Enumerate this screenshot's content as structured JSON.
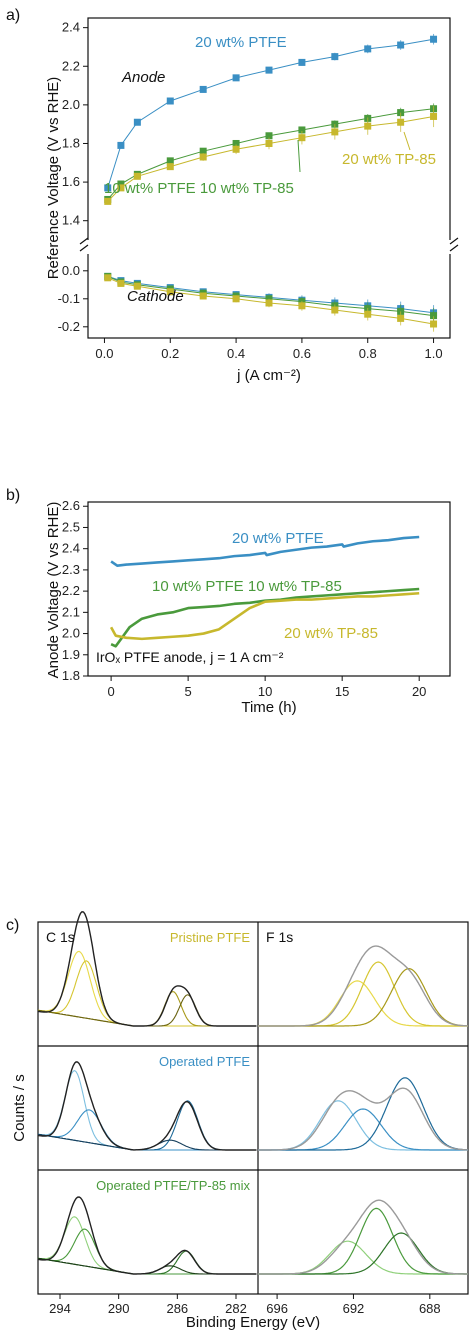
{
  "panel_labels": [
    "a)",
    "b)",
    "c)"
  ],
  "colors": {
    "blue": "#3a8fc4",
    "green": "#4a9a3c",
    "yellow": "#c7b82d",
    "axis": "#111111"
  },
  "chart_data": [
    {
      "type": "line",
      "panel": "a)",
      "xlabel": "j (A cm⁻²)",
      "ylabel": "Reference Voltage (V vs RHE)",
      "xlim": [
        -0.05,
        1.05
      ],
      "xticks": [
        "0.0",
        "0.2",
        "0.4",
        "0.6",
        "0.8",
        "1.0"
      ],
      "ylim_upper": [
        1.3,
        2.45
      ],
      "yticks_upper": [
        "1.4",
        "1.6",
        "1.8",
        "2.0",
        "2.2",
        "2.4"
      ],
      "ylim_lower": [
        -0.24,
        0.06
      ],
      "yticks_lower": [
        "-0.2",
        "-0.1",
        "0.0"
      ],
      "region_labels": [
        "Anode",
        "Cathode"
      ],
      "annotations": [
        "20 wt% PTFE",
        "20 wt% TP-85",
        "10 wt% PTFE 10 wt% TP-85"
      ],
      "series": [
        {
          "name": "20 wt% PTFE",
          "color": "#3a8fc4",
          "x": [
            0.01,
            0.05,
            0.1,
            0.2,
            0.3,
            0.4,
            0.5,
            0.6,
            0.7,
            0.8,
            0.9,
            1.0
          ],
          "anode": [
            1.57,
            1.79,
            1.91,
            2.02,
            2.08,
            2.14,
            2.18,
            2.22,
            2.25,
            2.29,
            2.31,
            2.34
          ],
          "cathode": [
            -0.02,
            -0.035,
            -0.045,
            -0.06,
            -0.075,
            -0.085,
            -0.095,
            -0.105,
            -0.115,
            -0.125,
            -0.135,
            -0.15
          ]
        },
        {
          "name": "10 wt% PTFE 10 wt% TP-85",
          "color": "#4a9a3c",
          "x": [
            0.01,
            0.05,
            0.1,
            0.2,
            0.3,
            0.4,
            0.5,
            0.6,
            0.7,
            0.8,
            0.9,
            1.0
          ],
          "anode": [
            1.51,
            1.59,
            1.64,
            1.71,
            1.76,
            1.8,
            1.84,
            1.87,
            1.9,
            1.93,
            1.96,
            1.98
          ],
          "cathode": [
            -0.02,
            -0.04,
            -0.05,
            -0.065,
            -0.08,
            -0.09,
            -0.1,
            -0.11,
            -0.125,
            -0.135,
            -0.145,
            -0.16
          ]
        },
        {
          "name": "20 wt% TP-85",
          "color": "#c7b82d",
          "x": [
            0.01,
            0.05,
            0.1,
            0.2,
            0.3,
            0.4,
            0.5,
            0.6,
            0.7,
            0.8,
            0.9,
            1.0
          ],
          "anode": [
            1.5,
            1.57,
            1.63,
            1.68,
            1.73,
            1.77,
            1.8,
            1.83,
            1.86,
            1.89,
            1.91,
            1.94
          ],
          "cathode": [
            -0.025,
            -0.045,
            -0.055,
            -0.075,
            -0.09,
            -0.1,
            -0.115,
            -0.125,
            -0.14,
            -0.155,
            -0.17,
            -0.19
          ]
        }
      ]
    },
    {
      "type": "line",
      "panel": "b)",
      "xlabel": "Time (h)",
      "ylabel": "Anode Voltage (V vs RHE)",
      "xlim": [
        -1.5,
        22
      ],
      "xticks": [
        "0",
        "5",
        "10",
        "15",
        "20"
      ],
      "ylim": [
        1.8,
        2.62
      ],
      "yticks": [
        "1.8",
        "1.9",
        "2.0",
        "2.1",
        "2.2",
        "2.3",
        "2.4",
        "2.5",
        "2.6"
      ],
      "annotation": "IrOₓ PTFE anode, j = 1 A cm⁻²",
      "series": [
        {
          "name": "20 wt% PTFE",
          "color": "#3a8fc4",
          "x": [
            0,
            0.4,
            1,
            2,
            3,
            4,
            5,
            6,
            7,
            8,
            9,
            10,
            10.1,
            11,
            12,
            13,
            14,
            15,
            15.1,
            16,
            17,
            18,
            19,
            20
          ],
          "y": [
            2.34,
            2.32,
            2.325,
            2.33,
            2.335,
            2.34,
            2.345,
            2.35,
            2.355,
            2.365,
            2.37,
            2.38,
            2.37,
            2.385,
            2.395,
            2.405,
            2.41,
            2.42,
            2.41,
            2.425,
            2.435,
            2.44,
            2.45,
            2.455
          ]
        },
        {
          "name": "10 wt% PTFE 10 wt% TP-85",
          "color": "#4a9a3c",
          "x": [
            0,
            0.3,
            0.7,
            1.2,
            2,
            3,
            4,
            5,
            6,
            7,
            8,
            9,
            10,
            11,
            12,
            13,
            14,
            15,
            16,
            17,
            18,
            19,
            20
          ],
          "y": [
            1.95,
            1.94,
            1.98,
            2.03,
            2.07,
            2.09,
            2.1,
            2.12,
            2.125,
            2.13,
            2.14,
            2.145,
            2.155,
            2.16,
            2.17,
            2.175,
            2.18,
            2.185,
            2.19,
            2.195,
            2.2,
            2.205,
            2.21
          ]
        },
        {
          "name": "20 wt% TP-85",
          "color": "#c7b82d",
          "x": [
            0,
            0.3,
            1,
            2,
            3,
            4,
            5,
            6,
            7,
            8,
            9,
            10,
            11,
            12,
            13,
            14,
            15,
            16,
            17,
            18,
            19,
            20
          ],
          "y": [
            2.03,
            1.99,
            1.98,
            1.975,
            1.98,
            1.985,
            1.99,
            2.0,
            2.02,
            2.07,
            2.12,
            2.15,
            2.155,
            2.16,
            2.16,
            2.165,
            2.17,
            2.175,
            2.175,
            2.18,
            2.185,
            2.19
          ]
        }
      ]
    },
    {
      "type": "line",
      "panel": "c)",
      "xlabel": "Binding Energy (eV)",
      "ylabel": "Counts / s",
      "xticks_left": [
        "294",
        "290",
        "286",
        "282"
      ],
      "xticks_right": [
        "696",
        "692",
        "688"
      ],
      "column_titles": [
        "C 1s",
        "F 1s"
      ],
      "rows": [
        {
          "label": "Pristine PTFE",
          "color": "#c7b82d"
        },
        {
          "label": "Operated PTFE",
          "color": "#3a8fc4"
        },
        {
          "label": "Operated PTFE/TP-85 mix",
          "color": "#4a9a3c"
        }
      ]
    }
  ]
}
